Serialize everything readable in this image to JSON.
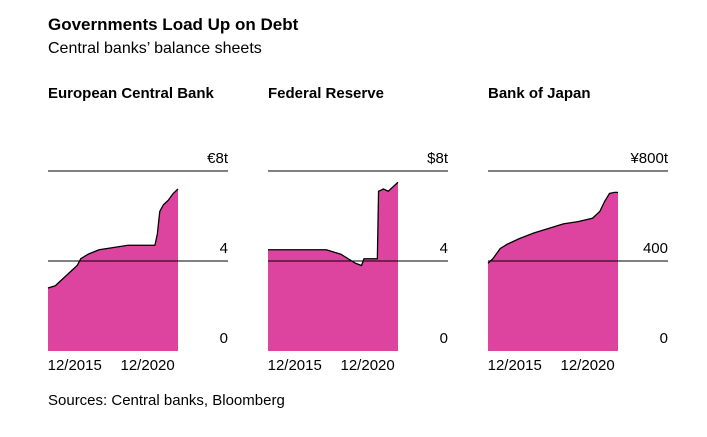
{
  "title": "Governments Load Up on Debt",
  "subtitle": "Central banks’ balance sheets",
  "source": "Sources: Central banks, Bloomberg",
  "chart_data": [
    {
      "type": "area",
      "title": "European Central Bank",
      "color": "#dd44a0",
      "grid": true,
      "x": [
        "02/2014",
        "08/2014",
        "02/2015",
        "08/2015",
        "02/2016",
        "05/2016",
        "11/2016",
        "08/2017",
        "08/2018",
        "08/2019",
        "08/2020",
        "06/2021",
        "08/2021",
        "10/2021",
        "01/2022",
        "05/2022",
        "09/2022",
        "01/2023"
      ],
      "values": [
        2.8,
        2.9,
        3.2,
        3.5,
        3.8,
        4.1,
        4.3,
        4.5,
        4.6,
        4.7,
        4.7,
        4.7,
        5.2,
        6.2,
        6.5,
        6.7,
        7.0,
        7.2
      ],
      "xlim": [
        "02/2014",
        "01/2023"
      ],
      "xticks": [
        "12/2015",
        "12/2020"
      ],
      "ylim": [
        0,
        8
      ],
      "yticks": [
        0,
        4,
        {
          "value": 8,
          "label": "€8t"
        }
      ]
    },
    {
      "type": "area",
      "title": "Federal Reserve",
      "color": "#dd44a0",
      "grid": true,
      "x": [
        "02/2014",
        "02/2016",
        "02/2018",
        "02/2019",
        "08/2019",
        "02/2020",
        "07/2020",
        "09/2020",
        "12/2020",
        "08/2021",
        "09/2021",
        "01/2022",
        "05/2022",
        "09/2022",
        "01/2023"
      ],
      "values": [
        4.5,
        4.5,
        4.5,
        4.3,
        4.1,
        3.9,
        3.8,
        4.1,
        4.1,
        4.1,
        7.1,
        7.2,
        7.1,
        7.3,
        7.5
      ],
      "xlim": [
        "02/2014",
        "01/2023"
      ],
      "xticks": [
        "12/2015",
        "12/2020"
      ],
      "ylim": [
        0,
        8
      ],
      "yticks": [
        0,
        4,
        {
          "value": 8,
          "label": "$8t"
        }
      ]
    },
    {
      "type": "area",
      "title": "Bank of Japan",
      "color": "#dd44a0",
      "grid": true,
      "x": [
        "02/2014",
        "06/2014",
        "12/2014",
        "06/2015",
        "04/2016",
        "04/2017",
        "04/2018",
        "04/2019",
        "04/2020",
        "04/2021",
        "10/2021",
        "02/2022",
        "06/2022",
        "10/2022",
        "01/2023"
      ],
      "values": [
        390,
        410,
        455,
        475,
        500,
        525,
        545,
        565,
        575,
        590,
        620,
        665,
        700,
        705,
        705
      ],
      "xlim": [
        "02/2014",
        "01/2023"
      ],
      "xticks": [
        "12/2015",
        "12/2020"
      ],
      "ylim": [
        0,
        800
      ],
      "yticks": [
        0,
        400,
        {
          "value": 800,
          "label": "¥800t"
        }
      ]
    }
  ]
}
